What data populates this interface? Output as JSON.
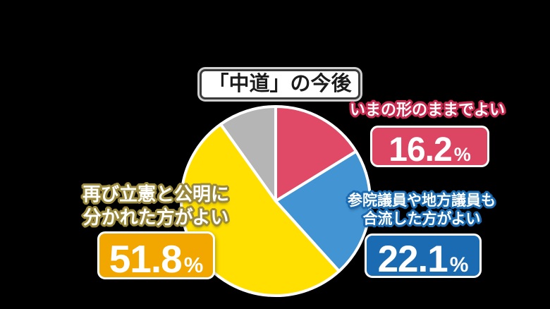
{
  "background_color": "#000000",
  "title": {
    "text": "「中道」の今後"
  },
  "chart_data": {
    "type": "pie",
    "title": "「中道」の今後",
    "start_angle_deg": 0,
    "direction": "clockwise",
    "stroke_color": "#FFFFFF",
    "slices": [
      {
        "label": "いまの形のままでよい",
        "value": 16.2,
        "display": "16.2%",
        "color": "#E04A66"
      },
      {
        "label": "参院議員や地方議員も合流した方がよい",
        "value": 22.1,
        "display": "22.1%",
        "color": "#4294D2"
      },
      {
        "label": "再び立憲と公明に分かれた方がよい",
        "value": 51.8,
        "display": "51.8%",
        "color": "#FFE000"
      },
      {
        "label": "",
        "value": 9.9,
        "display": "",
        "color": "#B5B5B5"
      }
    ]
  },
  "annotations": {
    "keep_current": {
      "line1": "いまの形のままでよい",
      "value": "16.2",
      "unit": "%",
      "badge_color": "#DC4663",
      "outline_color": "#C82A50"
    },
    "merge_members": {
      "line1": "参院議員や地方議員も",
      "line2": "合流した方がよい",
      "value": "22.1",
      "unit": "%",
      "badge_color": "#1A6BB2",
      "outline_color": "#1A6BB2"
    },
    "split_again": {
      "line1": "再び立憲と公明に",
      "line2": "分かれた方がよい",
      "value": "51.8",
      "unit": "%",
      "badge_color": "#F1A600",
      "outline_color": "#9C8A3C"
    }
  }
}
